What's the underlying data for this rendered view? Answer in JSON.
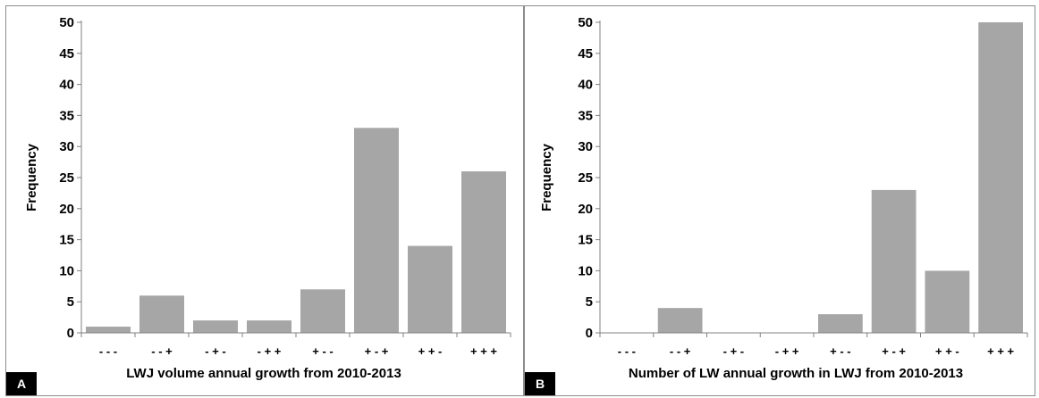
{
  "chart_data": [
    {
      "type": "bar",
      "panel_label": "A",
      "categories": [
        "- - -",
        "- - +",
        "- + -",
        "- + +",
        "+ - -",
        "+ - +",
        "+ + -",
        "+ + +"
      ],
      "values": [
        1,
        6,
        2,
        2,
        7,
        33,
        14,
        26
      ],
      "xlabel": "LWJ volume annual growth from 2010-2013",
      "ylabel": "Frequency",
      "ylim": [
        0,
        50
      ],
      "yticks": [
        "0",
        "5",
        "10",
        "15",
        "20",
        "25",
        "30",
        "35",
        "40",
        "45",
        "50"
      ],
      "bar_color": "#a6a6a6",
      "grid": false
    },
    {
      "type": "bar",
      "panel_label": "B",
      "categories": [
        "- - -",
        "- - +",
        "- + -",
        "- + +",
        "+ - -",
        "+ - +",
        "+ + -",
        "+ + +"
      ],
      "values": [
        0,
        4,
        0,
        0,
        3,
        23,
        10,
        50
      ],
      "xlabel": "Number of LW annual growth in LWJ from 2010-2013",
      "ylabel": "Frequency",
      "ylim": [
        0,
        50
      ],
      "yticks": [
        "0",
        "5",
        "10",
        "15",
        "20",
        "25",
        "30",
        "35",
        "40",
        "45",
        "50"
      ],
      "bar_color": "#a6a6a6",
      "grid": false
    }
  ]
}
